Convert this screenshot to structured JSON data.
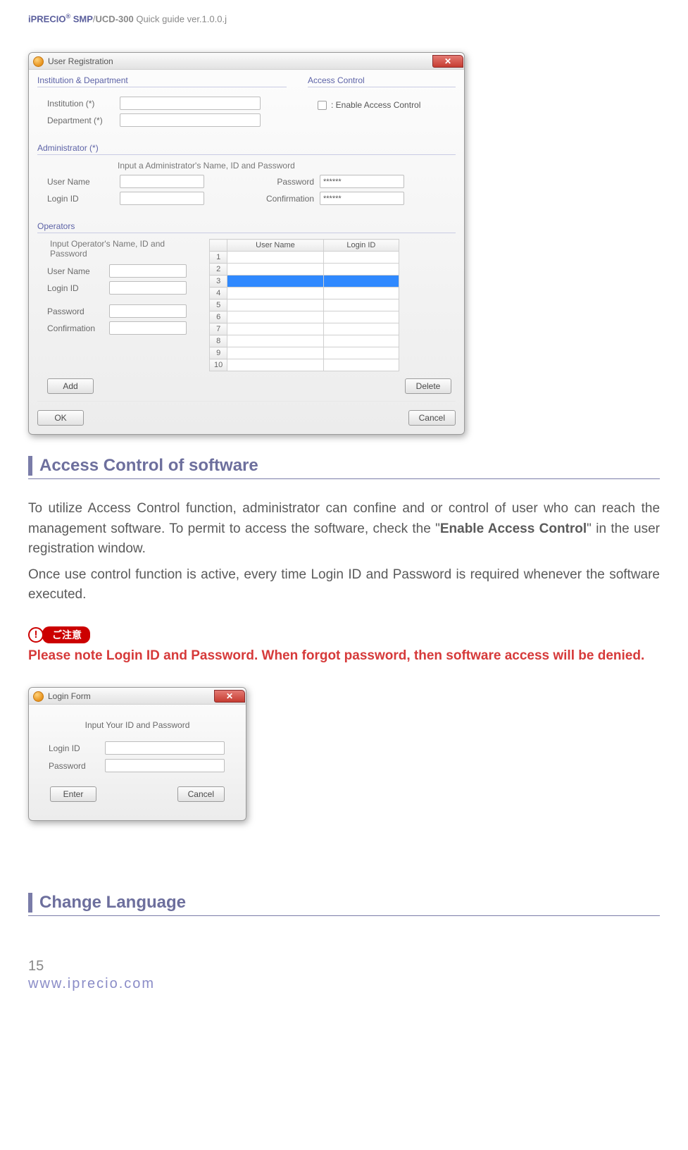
{
  "header": {
    "brand": "iPRECIO",
    "reg": "®",
    "smp": " SMP",
    "slash": "/",
    "ucd": "UCD-300",
    "rest": " Quick guide ver.1.0.0.j"
  },
  "dialog1": {
    "title": "User Registration",
    "close_glyph": "✕",
    "institution_section": "Institution & Department",
    "access_section": "Access Control",
    "institution_lbl": "Institution (*)",
    "department_lbl": "Department (*)",
    "enable_access_lbl": ": Enable Access Control",
    "admin_section": "Administrator (*)",
    "admin_hint": "Input a Administrator's Name, ID and Password",
    "user_name_lbl": "User Name",
    "login_id_lbl": "Login ID",
    "password_lbl": "Password",
    "password_val": "******",
    "confirm_lbl": "Confirmation",
    "confirm_val": "******",
    "operators_section": "Operators",
    "operators_hint": "Input Operator's Name, ID and Password",
    "table_h1": "User Name",
    "table_h2": "Login ID",
    "rows": [
      "1",
      "2",
      "3",
      "4",
      "5",
      "6",
      "7",
      "8",
      "9",
      "10"
    ],
    "selected_row_index": 2,
    "add_btn": "Add",
    "delete_btn": "Delete",
    "ok_btn": "OK",
    "cancel_btn": "Cancel",
    "colors": {
      "selected_row_bg": "#2f89ff",
      "close_bg1": "#e47a73",
      "close_bg2": "#c53c31"
    }
  },
  "section1": {
    "title": "Access Control of software"
  },
  "para1_a": "To utilize Access Control function, administrator can ",
  "para1_b": "confine and or control of user who can reach the management software. To permit to access the software, check the \"",
  "para1_bold": "Enable Access Control",
  "para1_c": "\" in the user registration window.",
  "para2": "Once use control function is active, every time Login ID and Password is required whenever the software executed.",
  "caution_label": "ご注意",
  "caution_mark": "!",
  "warning": "Please note Login ID and Password. When forgot password, then software access will be denied.",
  "dialog2": {
    "title": "Login Form",
    "close_glyph": "✕",
    "hint": "Input Your ID and Password",
    "login_id_lbl": "Login ID",
    "password_lbl": "Password",
    "enter_btn": "Enter",
    "cancel_btn": "Cancel"
  },
  "section2": {
    "title": "Change Language"
  },
  "footer": {
    "page_num": "15",
    "url": "www.iprecio.com"
  }
}
